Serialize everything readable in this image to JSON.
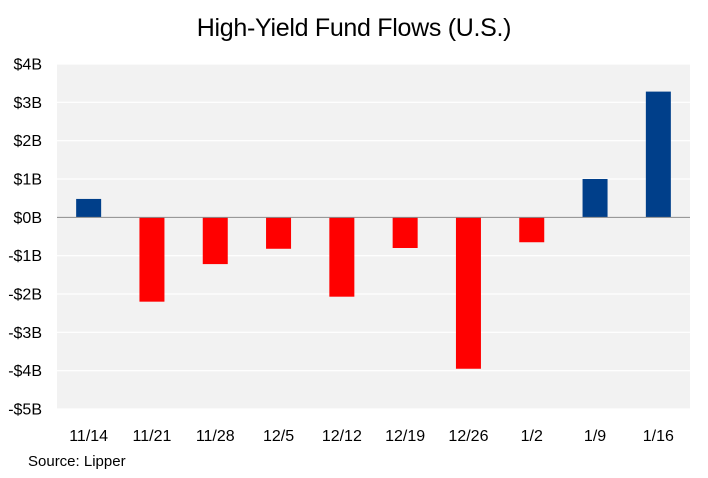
{
  "chart_data": {
    "type": "bar",
    "title": "High-Yield Fund Flows (U.S.)",
    "source": "Source: Lipper",
    "categories": [
      "11/14",
      "11/21",
      "11/28",
      "12/5",
      "12/12",
      "12/19",
      "12/26",
      "1/2",
      "1/9",
      "1/16"
    ],
    "values": [
      0.48,
      -2.2,
      -1.22,
      -0.82,
      -2.07,
      -0.8,
      -3.95,
      -0.65,
      1.0,
      3.28
    ],
    "units": "$B",
    "y_ticks": [
      4,
      3,
      2,
      1,
      0,
      -1,
      -2,
      -3,
      -4,
      -5
    ],
    "y_tick_labels": [
      "$4B",
      "$3B",
      "$2B",
      "$1B",
      "$0B",
      "-$1B",
      "-$2B",
      "-$3B",
      "-$4B",
      "-$5B"
    ],
    "ylim": [
      -5,
      4
    ],
    "xlabel": "",
    "ylabel": "",
    "grid": true,
    "colors": {
      "positive": "#003f8a",
      "negative": "#ff0000",
      "plot_background": "#f2f2f2",
      "gridline": "#ffffff",
      "zero_line": "#8c8c8c",
      "text": "#000000"
    }
  }
}
